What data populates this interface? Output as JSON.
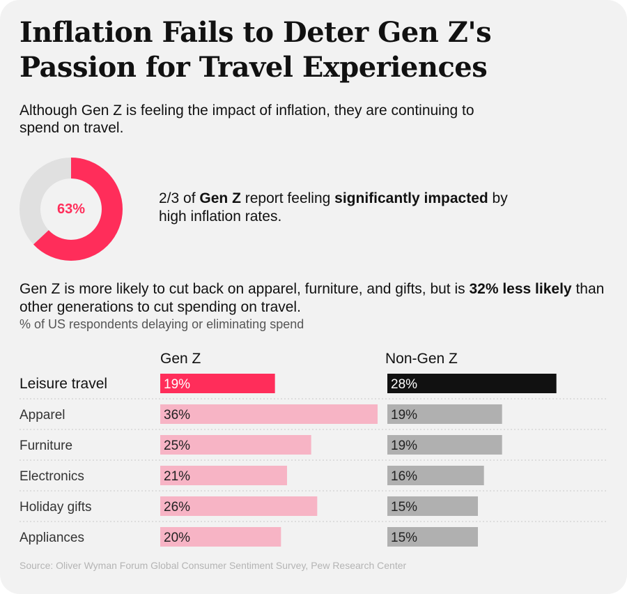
{
  "title": "Inflation Fails to Deter Gen Z's Passion for Travel Experiences",
  "subtitle": "Although Gen Z is feeling the impact of inflation, they are continuing to spend on travel.",
  "donut": {
    "value": 63,
    "label": "63%",
    "stat_parts": [
      "2/3 of ",
      "Gen Z",
      " report feeling ",
      "significantly impacted",
      " by high inflation rates."
    ]
  },
  "intro_parts": [
    "Gen Z is more likely to cut back on apparel, furniture, and gifts, but is ",
    "32% less likely",
    " than other generations to cut spending on travel."
  ],
  "note": "% of US respondents delaying or eliminating spend",
  "source": "Source: Oliver Wyman Forum Global Consumer Sentiment Survey, Pew Research Center",
  "colors": {
    "accent": "#ff2d5a",
    "accent_light": "#f7b4c5",
    "dark": "#111111",
    "gray_bar": "#b0b0b0",
    "donut_track": "#e0e0e0",
    "background": "#f2f2f2"
  },
  "chart_data": {
    "type": "bar",
    "orientation": "horizontal",
    "categories": [
      "Leisure travel",
      "Apparel",
      "Furniture",
      "Electronics",
      "Holiday gifts",
      "Appliances"
    ],
    "series": [
      {
        "name": "Gen Z",
        "values": [
          19,
          36,
          25,
          21,
          26,
          20
        ]
      },
      {
        "name": "Non-Gen Z",
        "values": [
          28,
          19,
          19,
          16,
          15,
          15
        ]
      }
    ],
    "data_labels": [
      [
        "19%",
        "36%",
        "25%",
        "21%",
        "26%",
        "20%"
      ],
      [
        "28%",
        "19%",
        "19%",
        "16%",
        "15%",
        "15%"
      ]
    ],
    "highlight_category": "Leisure travel",
    "xlim": [
      0,
      36
    ],
    "grid": false
  }
}
